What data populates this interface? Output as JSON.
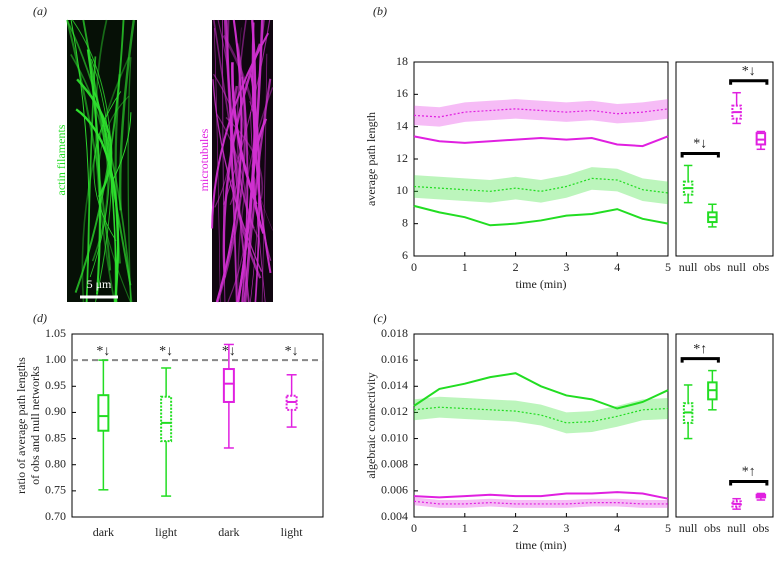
{
  "images": {
    "panel": "(a)",
    "left_label": "actin filaments",
    "right_label": "microtubules",
    "scale_bar": "5 μm"
  },
  "chart_data": [
    {
      "type": "line",
      "panel": "(b)",
      "xlabel": "time (min)",
      "ylabel": "average path length",
      "x": [
        0,
        0.5,
        1,
        1.5,
        2,
        2.5,
        3,
        3.5,
        4,
        4.5,
        5
      ],
      "xlim": [
        0,
        5
      ],
      "xticks": [
        0,
        1,
        2,
        3,
        4,
        5
      ],
      "ylim": [
        6,
        18
      ],
      "yticks": [
        6,
        8,
        10,
        12,
        14,
        16,
        18
      ],
      "series": [
        {
          "color": "#e020e0",
          "style": "dotted",
          "values": [
            14.7,
            14.6,
            14.9,
            15.0,
            15.1,
            15.0,
            14.9,
            15.0,
            14.8,
            14.9,
            15.1
          ],
          "lower": [
            14.1,
            14.0,
            14.3,
            14.4,
            14.5,
            14.4,
            14.3,
            14.4,
            14.2,
            14.3,
            14.5
          ],
          "upper": [
            15.3,
            15.2,
            15.5,
            15.6,
            15.7,
            15.6,
            15.5,
            15.6,
            15.4,
            15.5,
            15.7
          ]
        },
        {
          "color": "#e020e0",
          "style": "solid",
          "values": [
            13.4,
            13.1,
            13.0,
            13.1,
            13.2,
            13.3,
            13.2,
            13.3,
            12.9,
            12.8,
            13.4
          ]
        },
        {
          "color": "#22dd22",
          "style": "dotted",
          "values": [
            10.3,
            10.2,
            10.1,
            10.0,
            10.2,
            10.0,
            10.3,
            10.8,
            10.7,
            10.1,
            9.9
          ],
          "lower": [
            9.6,
            9.5,
            9.4,
            9.3,
            9.5,
            9.3,
            9.6,
            10.1,
            10.0,
            9.4,
            9.2
          ],
          "upper": [
            11.0,
            10.9,
            10.8,
            10.7,
            10.9,
            10.7,
            11.0,
            11.5,
            11.4,
            10.8,
            10.6
          ]
        },
        {
          "color": "#22dd22",
          "style": "solid",
          "values": [
            9.1,
            8.7,
            8.4,
            7.9,
            8.0,
            8.2,
            8.5,
            8.6,
            8.9,
            8.3,
            8.0
          ]
        }
      ]
    },
    {
      "type": "box",
      "categories": [
        "null",
        "obs",
        "null",
        "obs"
      ],
      "ylim": [
        6,
        18
      ],
      "annotations": [
        "*↓",
        "*↓"
      ],
      "boxes": [
        {
          "color": "#22dd22",
          "style": "dotted",
          "min": 9.3,
          "q1": 9.8,
          "median": 10.2,
          "q3": 10.6,
          "max": 11.6
        },
        {
          "color": "#22dd22",
          "style": "solid",
          "min": 7.8,
          "q1": 8.1,
          "median": 8.4,
          "q3": 8.7,
          "max": 9.2
        },
        {
          "color": "#e020e0",
          "style": "dotted",
          "min": 14.2,
          "q1": 14.5,
          "median": 14.9,
          "q3": 15.3,
          "max": 16.1
        },
        {
          "color": "#e020e0",
          "style": "solid",
          "min": 12.6,
          "q1": 12.9,
          "median": 13.2,
          "q3": 13.6,
          "max": 13.7
        }
      ]
    },
    {
      "type": "line",
      "panel": "(c)",
      "xlabel": "time (min)",
      "ylabel": "algebraic connectivity",
      "x": [
        0,
        0.5,
        1,
        1.5,
        2,
        2.5,
        3,
        3.5,
        4,
        4.5,
        5
      ],
      "xlim": [
        0,
        5
      ],
      "xticks": [
        0,
        1,
        2,
        3,
        4,
        5
      ],
      "ylim": [
        0.004,
        0.018
      ],
      "yticks": [
        0.004,
        0.006,
        0.008,
        {
          "value": 0.01,
          "label": "0.010"
        },
        0.012,
        0.014,
        0.016,
        0.018
      ],
      "series": [
        {
          "color": "#22dd22",
          "style": "solid",
          "values": [
            0.0125,
            0.0138,
            0.0142,
            0.0147,
            0.015,
            0.014,
            0.0133,
            0.013,
            0.0123,
            0.0128,
            0.0137
          ]
        },
        {
          "color": "#22dd22",
          "style": "dotted",
          "values": [
            0.0122,
            0.0124,
            0.0123,
            0.0122,
            0.0121,
            0.0118,
            0.0112,
            0.0113,
            0.0117,
            0.0122,
            0.0123
          ],
          "lower": [
            0.0114,
            0.0116,
            0.0115,
            0.0114,
            0.0113,
            0.011,
            0.0104,
            0.0105,
            0.0109,
            0.0114,
            0.0115
          ],
          "upper": [
            0.013,
            0.0132,
            0.0131,
            0.013,
            0.0129,
            0.0126,
            0.012,
            0.0121,
            0.0125,
            0.013,
            0.0131
          ]
        },
        {
          "color": "#e020e0",
          "style": "solid",
          "values": [
            0.0056,
            0.0055,
            0.0056,
            0.0057,
            0.0056,
            0.0056,
            0.0058,
            0.0058,
            0.0059,
            0.0058,
            0.0054
          ]
        },
        {
          "color": "#e020e0",
          "style": "dotted",
          "values": [
            0.0052,
            0.005,
            0.005,
            0.0051,
            0.005,
            0.005,
            0.005,
            0.0051,
            0.0051,
            0.005,
            0.005
          ],
          "lower": [
            0.0049,
            0.0047,
            0.0047,
            0.0048,
            0.0047,
            0.0047,
            0.0047,
            0.0048,
            0.0048,
            0.0047,
            0.0047
          ],
          "upper": [
            0.0055,
            0.0053,
            0.0053,
            0.0054,
            0.0053,
            0.0053,
            0.0053,
            0.0054,
            0.0054,
            0.0053,
            0.0053
          ]
        }
      ]
    },
    {
      "type": "box",
      "categories": [
        "null",
        "obs",
        "null",
        "obs"
      ],
      "ylim": [
        0.004,
        0.018
      ],
      "annotations": [
        "*↑",
        "*↑"
      ],
      "boxes": [
        {
          "color": "#22dd22",
          "style": "dotted",
          "min": 0.01,
          "q1": 0.0112,
          "median": 0.012,
          "q3": 0.0127,
          "max": 0.0141
        },
        {
          "color": "#22dd22",
          "style": "solid",
          "min": 0.0122,
          "q1": 0.013,
          "median": 0.0137,
          "q3": 0.0143,
          "max": 0.0152
        },
        {
          "color": "#e020e0",
          "style": "dotted",
          "min": 0.0046,
          "q1": 0.0048,
          "median": 0.005,
          "q3": 0.0052,
          "max": 0.0054
        },
        {
          "color": "#e020e0",
          "style": "solid",
          "min": 0.0053,
          "q1": 0.0055,
          "median": 0.0056,
          "q3": 0.0057,
          "max": 0.0058
        }
      ]
    },
    {
      "type": "box",
      "panel": "(d)",
      "ylabel": [
        "ratio of average path lengths",
        "of obs and null networks"
      ],
      "categories": [
        "dark",
        "light",
        "dark",
        "light"
      ],
      "ylim": [
        0.7,
        1.05
      ],
      "yticks": [
        {
          "value": 0.7,
          "label": "0.70"
        },
        0.75,
        {
          "value": 0.8,
          "label": "0.80"
        },
        0.85,
        {
          "value": 0.9,
          "label": "0.90"
        },
        0.95,
        {
          "value": 1,
          "label": "1.00"
        },
        1.05
      ],
      "hline": 1,
      "hline_style": "dashed",
      "annotations": [
        "*↓",
        "*↓",
        "*↓",
        "*↓"
      ],
      "boxes": [
        {
          "color": "#22dd22",
          "style": "solid",
          "min": 0.752,
          "q1": 0.865,
          "median": 0.893,
          "q3": 0.933,
          "max": 1.0
        },
        {
          "color": "#22dd22",
          "style": "dotted",
          "min": 0.74,
          "q1": 0.845,
          "median": 0.88,
          "q3": 0.93,
          "max": 0.985
        },
        {
          "color": "#e020e0",
          "style": "solid",
          "min": 0.832,
          "q1": 0.92,
          "median": 0.955,
          "q3": 0.983,
          "max": 1.03
        },
        {
          "color": "#e020e0",
          "style": "dotted",
          "min": 0.872,
          "q1": 0.905,
          "median": 0.92,
          "q3": 0.932,
          "max": 0.972
        }
      ]
    }
  ]
}
